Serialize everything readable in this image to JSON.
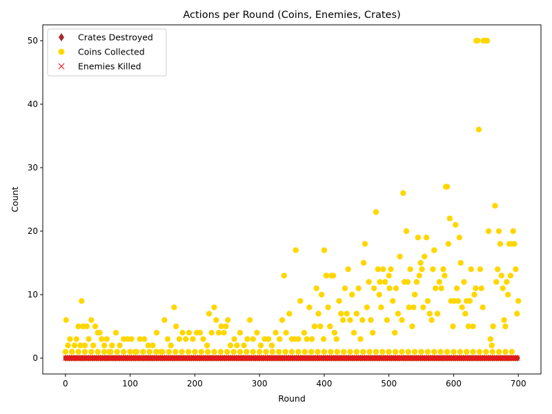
{
  "chart_data": {
    "type": "scatter",
    "title": "Actions per Round (Coins, Enemies, Crates)",
    "xlabel": "Round",
    "ylabel": "Count",
    "xlim": [
      -35,
      735
    ],
    "ylim": [
      -2.5,
      52.5
    ],
    "xticks": [
      0,
      100,
      200,
      300,
      400,
      500,
      600,
      700
    ],
    "yticks": [
      0,
      10,
      20,
      30,
      40,
      50
    ],
    "grid": false,
    "legend_position": "top-left",
    "series": [
      {
        "name": "Crates Destroyed",
        "marker": "diamond",
        "color": "#a52a2a",
        "constant_y": 0,
        "x_range": [
          0,
          699
        ]
      },
      {
        "name": "Coins Collected",
        "marker": "circle",
        "color": "#ffd700",
        "points": [
          [
            1,
            6
          ],
          [
            4,
            2
          ],
          [
            7,
            3
          ],
          [
            10,
            1
          ],
          [
            14,
            2
          ],
          [
            17,
            3
          ],
          [
            20,
            5
          ],
          [
            23,
            2
          ],
          [
            25,
            9
          ],
          [
            27,
            5
          ],
          [
            30,
            2
          ],
          [
            33,
            5
          ],
          [
            36,
            3
          ],
          [
            40,
            6
          ],
          [
            43,
            2
          ],
          [
            46,
            5
          ],
          [
            50,
            4
          ],
          [
            53,
            4
          ],
          [
            56,
            3
          ],
          [
            60,
            2
          ],
          [
            64,
            3
          ],
          [
            68,
            1
          ],
          [
            72,
            2
          ],
          [
            78,
            4
          ],
          [
            84,
            2
          ],
          [
            90,
            3
          ],
          [
            96,
            3
          ],
          [
            102,
            3
          ],
          [
            108,
            1
          ],
          [
            115,
            3
          ],
          [
            122,
            3
          ],
          [
            128,
            2
          ],
          [
            135,
            2
          ],
          [
            141,
            4
          ],
          [
            147,
            1
          ],
          [
            153,
            6
          ],
          [
            158,
            3
          ],
          [
            163,
            2
          ],
          [
            168,
            8
          ],
          [
            171,
            5
          ],
          [
            176,
            3
          ],
          [
            181,
            4
          ],
          [
            186,
            3
          ],
          [
            191,
            4
          ],
          [
            197,
            3
          ],
          [
            203,
            4
          ],
          [
            208,
            4
          ],
          [
            213,
            3
          ],
          [
            219,
            2
          ],
          [
            222,
            7
          ],
          [
            226,
            4
          ],
          [
            230,
            8
          ],
          [
            233,
            6
          ],
          [
            237,
            4
          ],
          [
            241,
            5
          ],
          [
            245,
            4
          ],
          [
            248,
            5
          ],
          [
            251,
            6
          ],
          [
            255,
            2
          ],
          [
            261,
            3
          ],
          [
            265,
            2
          ],
          [
            270,
            4
          ],
          [
            276,
            2
          ],
          [
            281,
            3
          ],
          [
            285,
            6
          ],
          [
            290,
            3
          ],
          [
            296,
            4
          ],
          [
            302,
            2
          ],
          [
            308,
            3
          ],
          [
            314,
            3
          ],
          [
            319,
            2
          ],
          [
            325,
            4
          ],
          [
            331,
            3
          ],
          [
            335,
            6
          ],
          [
            338,
            13
          ],
          [
            341,
            4
          ],
          [
            346,
            7
          ],
          [
            350,
            3
          ],
          [
            354,
            3
          ],
          [
            356,
            17
          ],
          [
            360,
            3
          ],
          [
            363,
            9
          ],
          [
            369,
            4
          ],
          [
            373,
            3
          ],
          [
            377,
            8
          ],
          [
            381,
            3
          ],
          [
            385,
            5
          ],
          [
            388,
            11
          ],
          [
            391,
            7
          ],
          [
            394,
            5
          ],
          [
            396,
            10
          ],
          [
            399,
            3
          ],
          [
            400,
            17
          ],
          [
            403,
            13
          ],
          [
            406,
            8
          ],
          [
            409,
            5
          ],
          [
            411,
            13
          ],
          [
            414,
            13
          ],
          [
            416,
            4
          ],
          [
            419,
            3
          ],
          [
            423,
            9
          ],
          [
            426,
            7
          ],
          [
            429,
            6
          ],
          [
            432,
            11
          ],
          [
            435,
            7
          ],
          [
            437,
            14
          ],
          [
            440,
            6
          ],
          [
            443,
            10
          ],
          [
            446,
            4
          ],
          [
            450,
            7
          ],
          [
            453,
            11
          ],
          [
            456,
            3
          ],
          [
            459,
            6
          ],
          [
            461,
            15
          ],
          [
            463,
            18
          ],
          [
            466,
            8
          ],
          [
            469,
            12
          ],
          [
            472,
            6
          ],
          [
            475,
            4
          ],
          [
            477,
            11
          ],
          [
            480,
            23
          ],
          [
            483,
            14
          ],
          [
            485,
            10
          ],
          [
            486,
            12
          ],
          [
            488,
            8
          ],
          [
            491,
            14
          ],
          [
            494,
            12
          ],
          [
            497,
            6
          ],
          [
            500,
            13
          ],
          [
            501,
            11
          ],
          [
            503,
            14
          ],
          [
            506,
            9
          ],
          [
            509,
            4
          ],
          [
            511,
            11
          ],
          [
            514,
            7
          ],
          [
            517,
            16
          ],
          [
            520,
            6
          ],
          [
            522,
            26
          ],
          [
            524,
            12
          ],
          [
            527,
            20
          ],
          [
            529,
            12
          ],
          [
            531,
            8
          ],
          [
            533,
            14
          ],
          [
            536,
            5
          ],
          [
            538,
            8
          ],
          [
            540,
            10
          ],
          [
            543,
            12
          ],
          [
            545,
            19
          ],
          [
            547,
            13
          ],
          [
            549,
            15
          ],
          [
            551,
            14
          ],
          [
            553,
            8
          ],
          [
            555,
            16
          ],
          [
            558,
            19
          ],
          [
            560,
            9
          ],
          [
            563,
            7
          ],
          [
            566,
            6
          ],
          [
            568,
            14
          ],
          [
            570,
            17
          ],
          [
            572,
            11
          ],
          [
            575,
            7
          ],
          [
            578,
            12
          ],
          [
            581,
            11
          ],
          [
            584,
            14
          ],
          [
            586,
            13
          ],
          [
            588,
            27
          ],
          [
            590,
            27
          ],
          [
            592,
            18
          ],
          [
            594,
            22
          ],
          [
            596,
            9
          ],
          [
            599,
            5
          ],
          [
            601,
            9
          ],
          [
            603,
            21
          ],
          [
            605,
            11
          ],
          [
            607,
            9
          ],
          [
            609,
            19
          ],
          [
            611,
            15
          ],
          [
            613,
            8
          ],
          [
            616,
            12
          ],
          [
            618,
            7
          ],
          [
            620,
            9
          ],
          [
            623,
            5
          ],
          [
            625,
            9
          ],
          [
            627,
            14
          ],
          [
            630,
            5
          ],
          [
            632,
            10
          ],
          [
            634,
            11
          ],
          [
            635,
            50
          ],
          [
            637,
            50
          ],
          [
            639,
            36
          ],
          [
            641,
            14
          ],
          [
            643,
            11
          ],
          [
            645,
            8
          ],
          [
            646,
            50
          ],
          [
            649,
            50
          ],
          [
            652,
            50
          ],
          [
            654,
            20
          ],
          [
            657,
            3
          ],
          [
            659,
            2
          ],
          [
            661,
            5
          ],
          [
            664,
            24
          ],
          [
            666,
            12
          ],
          [
            668,
            14
          ],
          [
            670,
            20
          ],
          [
            672,
            18
          ],
          [
            674,
            13
          ],
          [
            676,
            11
          ],
          [
            678,
            6
          ],
          [
            680,
            5
          ],
          [
            682,
            12
          ],
          [
            684,
            10
          ],
          [
            686,
            18
          ],
          [
            688,
            13
          ],
          [
            690,
            18
          ],
          [
            692,
            20
          ],
          [
            694,
            18
          ],
          [
            696,
            14
          ],
          [
            698,
            7
          ],
          [
            700,
            9
          ]
        ],
        "baseline_band_y": [
          0,
          1
        ],
        "baseline_band_x": [
          0,
          699
        ]
      },
      {
        "name": "Enemies Killed",
        "marker": "x",
        "color": "#e31a1c",
        "constant_y": 0,
        "x_range": [
          0,
          699
        ]
      }
    ]
  }
}
